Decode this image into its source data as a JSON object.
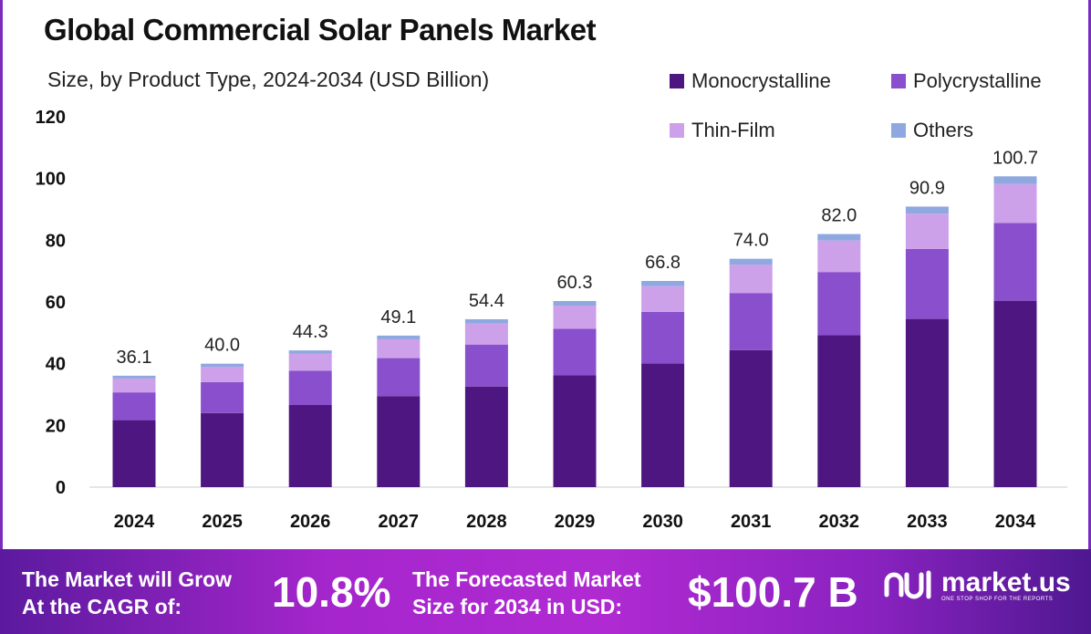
{
  "header": {
    "title": "Global Commercial Solar Panels Market",
    "subtitle": "Size, by Product Type, 2024-2034 (USD Billion)"
  },
  "colors": {
    "Monocrystalline": "#4e1680",
    "Polycrystalline": "#8a4fcc",
    "Thin-Film": "#cda0ea",
    "Others": "#8fa8e0",
    "accent": "#7b2cbf"
  },
  "chart_data": {
    "type": "bar",
    "stacked": true,
    "title": "Global Commercial Solar Panels Market",
    "subtitle": "Size, by Product Type, 2024-2034 (USD Billion)",
    "xlabel": "",
    "ylabel": "",
    "ylim": [
      0,
      120
    ],
    "yticks": [
      "0",
      "20",
      "40",
      "60",
      "80",
      "100",
      "120"
    ],
    "grid": false,
    "legend_position": "top-right",
    "categories": [
      "2024",
      "2025",
      "2026",
      "2027",
      "2028",
      "2029",
      "2030",
      "2031",
      "2032",
      "2033",
      "2034"
    ],
    "series": [
      {
        "name": "Monocrystalline",
        "values": [
          21.7,
          24.0,
          26.6,
          29.5,
          32.6,
          36.2,
          40.1,
          44.4,
          49.2,
          54.5,
          60.4
        ]
      },
      {
        "name": "Polycrystalline",
        "values": [
          9.0,
          10.0,
          11.1,
          12.3,
          13.6,
          15.1,
          16.7,
          18.5,
          20.5,
          22.7,
          25.2
        ]
      },
      {
        "name": "Thin-Film",
        "values": [
          4.5,
          5.0,
          5.5,
          6.1,
          6.8,
          7.5,
          8.3,
          9.2,
          10.2,
          11.4,
          12.6
        ]
      },
      {
        "name": "Others",
        "values": [
          0.9,
          1.0,
          1.1,
          1.2,
          1.4,
          1.5,
          1.7,
          1.9,
          2.1,
          2.3,
          2.5
        ]
      }
    ],
    "totals": [
      "36.1",
      "40.0",
      "44.3",
      "49.1",
      "54.4",
      "60.3",
      "66.8",
      "74.0",
      "82.0",
      "90.9",
      "100.7"
    ]
  },
  "footer": {
    "cagr_label_line1": "The Market will Grow",
    "cagr_label_line2": "At the CAGR of:",
    "cagr_value": "10.8%",
    "forecast_label_line1": "The Forecasted Market",
    "forecast_label_line2": "Size for 2034 in USD:",
    "forecast_value": "$100.7 B",
    "brand_name": "market.us",
    "brand_tagline": "ONE STOP SHOP FOR THE REPORTS"
  }
}
